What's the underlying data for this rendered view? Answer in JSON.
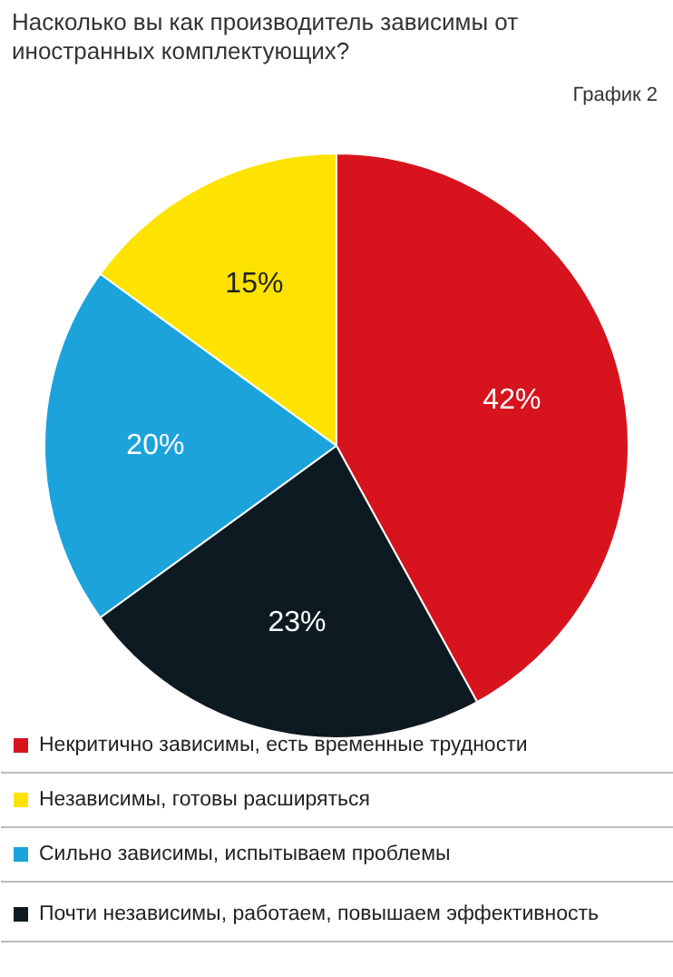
{
  "chart_data": {
    "type": "pie",
    "title": "Насколько вы как производитель зависимы от иностранных комплектующих?",
    "subtitle": "График 2",
    "categories": [
      "Некритично зависимы, есть временные трудности",
      "Независимы, готовы расширяться",
      "Сильно зависимы, испытываем проблемы",
      "Почти независимы, работаем, повышаем эффективность"
    ],
    "values": [
      42,
      15,
      20,
      23
    ],
    "colors": [
      "#d7141d",
      "#ffe300",
      "#1ca3dc",
      "#0e1a22"
    ],
    "value_labels": [
      "42%",
      "15%",
      "20%",
      "23%"
    ],
    "legend": "bottom"
  }
}
